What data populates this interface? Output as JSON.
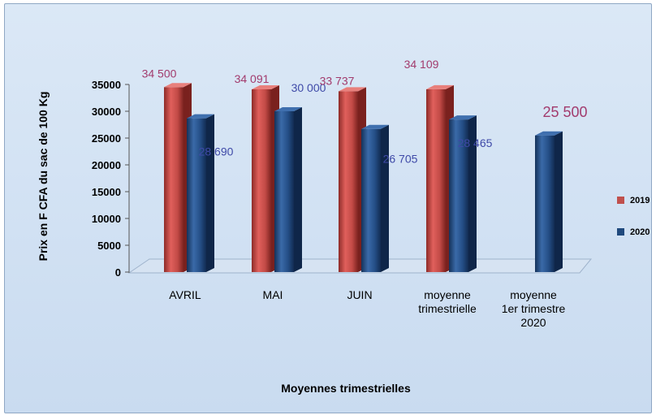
{
  "chart_data": {
    "type": "bar",
    "title": "",
    "xlabel": "Moyennes trimestrielles",
    "ylabel": "Prix en F CFA du sac de 100 Kg",
    "ylim": [
      0,
      35000
    ],
    "yticks": [
      "0",
      "5000",
      "10000",
      "15000",
      "20000",
      "25000",
      "30000",
      "35000"
    ],
    "categories": [
      [
        "AVRIL"
      ],
      [
        "MAI"
      ],
      [
        "JUIN"
      ],
      [
        "moyenne",
        "trimestrielle"
      ],
      [
        "moyenne",
        "1er  trimestre",
        "2020"
      ]
    ],
    "series": [
      {
        "name": "2019",
        "color": "#c0504d",
        "values": [
          34500,
          34091,
          33737,
          34109,
          null
        ],
        "labels": [
          "34 500",
          "34 091",
          "33 737",
          "34 109",
          ""
        ]
      },
      {
        "name": "2020",
        "color": "#1f497d",
        "values": [
          28690,
          30000,
          26705,
          28465,
          25500
        ],
        "labels": [
          "28 690",
          "30 000",
          "26 705",
          "28 465",
          "25 500"
        ]
      }
    ],
    "legend_position": "right",
    "grid": false
  }
}
